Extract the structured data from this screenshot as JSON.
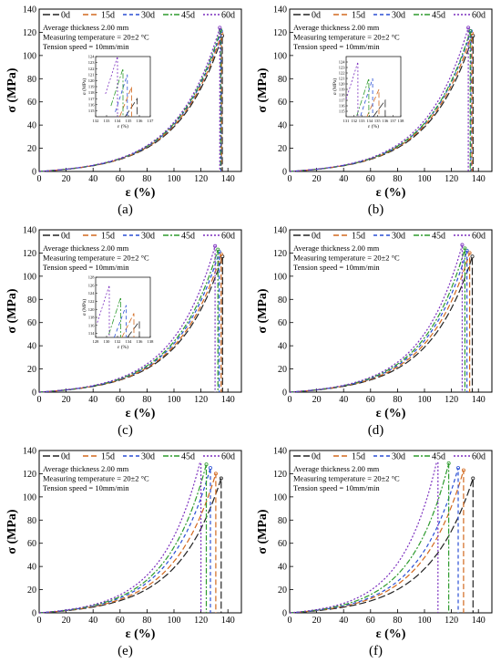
{
  "figure": {
    "panels": [
      {
        "label": "a",
        "caption": "(a)"
      },
      {
        "label": "b",
        "caption": "(b)"
      },
      {
        "label": "c",
        "caption": "(c)"
      },
      {
        "label": "d",
        "caption": "(d)"
      },
      {
        "label": "e",
        "caption": "(e)"
      },
      {
        "label": "f",
        "caption": "(f)"
      }
    ]
  },
  "chart_data": [
    {
      "panel": "a",
      "type": "line",
      "xlabel": "ε (%)",
      "ylabel": "σ (MPa)",
      "xlim": [
        0,
        150
      ],
      "ylim": [
        0,
        140
      ],
      "xticks": [
        0,
        20,
        40,
        60,
        80,
        100,
        120,
        140
      ],
      "yticks": [
        0,
        20,
        40,
        60,
        80,
        100,
        120,
        140
      ],
      "annotations": [
        "Average thickness 2.00 mm",
        "Measuring temperature = 20±2 °C",
        "Tension speed = 10mm/min"
      ],
      "series": [
        {
          "name": "0d",
          "color": "#222222",
          "dash": "8,3",
          "strain_at_break": 135.8,
          "stress_at_break": 117
        },
        {
          "name": "15d",
          "color": "#d2691e",
          "dash": "6,3",
          "strain_at_break": 135.3,
          "stress_at_break": 119
        },
        {
          "name": "30d",
          "color": "#2a4fd4",
          "dash": "4,3",
          "strain_at_break": 134.9,
          "stress_at_break": 121
        },
        {
          "name": "45d",
          "color": "#2e9b2e",
          "dash": "6,2,2,2",
          "strain_at_break": 134.5,
          "stress_at_break": 122
        },
        {
          "name": "60d",
          "color": "#7b2fbe",
          "dash": "2,2",
          "strain_at_break": 134.0,
          "stress_at_break": 124
        }
      ],
      "inset": {
        "xlabel": "ε (%)",
        "ylabel": "σ (MPa)",
        "xlim": [
          132,
          137
        ],
        "ylim": [
          114,
          124
        ],
        "xticks": [
          132,
          133,
          134,
          135,
          136,
          137
        ],
        "yticks": [
          115,
          116,
          117,
          118,
          119,
          120,
          121,
          122,
          123,
          124
        ]
      }
    },
    {
      "panel": "b",
      "type": "line",
      "xlabel": "ε (%)",
      "ylabel": "σ (MPa)",
      "xlim": [
        0,
        150
      ],
      "ylim": [
        0,
        140
      ],
      "xticks": [
        0,
        20,
        40,
        60,
        80,
        100,
        120,
        140
      ],
      "yticks": [
        0,
        20,
        40,
        60,
        80,
        100,
        120,
        140
      ],
      "annotations": [
        "Average thickness 2.00 mm",
        "Measuring temperature = 20±2 °C",
        "Tension speed = 10mm/min"
      ],
      "series": [
        {
          "name": "0d",
          "color": "#222222",
          "dash": "8,3",
          "strain_at_break": 136.0,
          "stress_at_break": 117
        },
        {
          "name": "15d",
          "color": "#d2691e",
          "dash": "6,3",
          "strain_at_break": 135.2,
          "stress_at_break": 119
        },
        {
          "name": "30d",
          "color": "#2a4fd4",
          "dash": "4,3",
          "strain_at_break": 134.4,
          "stress_at_break": 121
        },
        {
          "name": "45d",
          "color": "#2e9b2e",
          "dash": "6,2,2,2",
          "strain_at_break": 133.9,
          "stress_at_break": 121
        },
        {
          "name": "60d",
          "color": "#7b2fbe",
          "dash": "2,2",
          "strain_at_break": 132.5,
          "stress_at_break": 124
        }
      ],
      "inset": {
        "xlabel": "ε (%)",
        "ylabel": "σ (MPa)",
        "xlim": [
          131,
          138
        ],
        "ylim": [
          114,
          125
        ],
        "xticks": [
          131,
          132,
          133,
          134,
          135,
          136,
          137,
          138
        ],
        "yticks": [
          115,
          116,
          117,
          118,
          119,
          120,
          121,
          122,
          123,
          124
        ]
      }
    },
    {
      "panel": "c",
      "type": "line",
      "xlabel": "ε (%)",
      "ylabel": "σ (MPa)",
      "xlim": [
        0,
        150
      ],
      "ylim": [
        0,
        140
      ],
      "xticks": [
        0,
        20,
        40,
        60,
        80,
        100,
        120,
        140
      ],
      "yticks": [
        0,
        20,
        40,
        60,
        80,
        100,
        120,
        140
      ],
      "annotations": [
        "Average thickness 2.00 mm",
        "Measuring temperature = 20±2 °C",
        "Tension speed = 10mm/min"
      ],
      "series": [
        {
          "name": "0d",
          "color": "#222222",
          "dash": "8,3",
          "strain_at_break": 136.0,
          "stress_at_break": 117
        },
        {
          "name": "15d",
          "color": "#d2691e",
          "dash": "6,3",
          "strain_at_break": 135.0,
          "stress_at_break": 119
        },
        {
          "name": "30d",
          "color": "#2a4fd4",
          "dash": "4,3",
          "strain_at_break": 133.6,
          "stress_at_break": 121
        },
        {
          "name": "45d",
          "color": "#2e9b2e",
          "dash": "6,2,2,2",
          "strain_at_break": 132.6,
          "stress_at_break": 123
        },
        {
          "name": "60d",
          "color": "#7b2fbe",
          "dash": "2,2",
          "strain_at_break": 130.5,
          "stress_at_break": 126
        }
      ],
      "inset": {
        "xlabel": "ε (%)",
        "ylabel": "σ (MPa)",
        "xlim": [
          128,
          138
        ],
        "ylim": [
          113,
          128
        ],
        "xticks": [
          128,
          130,
          132,
          134,
          136,
          138
        ],
        "yticks": [
          114,
          116,
          118,
          120,
          122,
          124,
          126,
          128
        ]
      }
    },
    {
      "panel": "d",
      "type": "line",
      "xlabel": "ε (%)",
      "ylabel": "σ (MPa)",
      "xlim": [
        0,
        150
      ],
      "ylim": [
        0,
        140
      ],
      "xticks": [
        0,
        20,
        40,
        60,
        80,
        100,
        120,
        140
      ],
      "yticks": [
        0,
        20,
        40,
        60,
        80,
        100,
        120,
        140
      ],
      "annotations": [
        "Average thickness 2.00 mm",
        "Measuring temperature = 20±2 °C",
        "Tension speed = 10mm/min"
      ],
      "series": [
        {
          "name": "0d",
          "color": "#222222",
          "dash": "8,3",
          "strain_at_break": 135.5,
          "stress_at_break": 117
        },
        {
          "name": "15d",
          "color": "#d2691e",
          "dash": "6,3",
          "strain_at_break": 133.5,
          "stress_at_break": 120
        },
        {
          "name": "30d",
          "color": "#2a4fd4",
          "dash": "4,3",
          "strain_at_break": 131.5,
          "stress_at_break": 122
        },
        {
          "name": "45d",
          "color": "#2e9b2e",
          "dash": "6,2,2,2",
          "strain_at_break": 130.0,
          "stress_at_break": 124
        },
        {
          "name": "60d",
          "color": "#7b2fbe",
          "dash": "2,2",
          "strain_at_break": 128.0,
          "stress_at_break": 127
        }
      ]
    },
    {
      "panel": "e",
      "type": "line",
      "xlabel": "ε (%)",
      "ylabel": "σ (MPa)",
      "xlim": [
        0,
        150
      ],
      "ylim": [
        0,
        140
      ],
      "xticks": [
        0,
        20,
        40,
        60,
        80,
        100,
        120,
        140
      ],
      "yticks": [
        0,
        20,
        40,
        60,
        80,
        100,
        120,
        140
      ],
      "annotations": [
        "Average thickness 2.00 mm",
        "Measuring temperature = 20±2 °C",
        "Tension speed = 10mm/min"
      ],
      "series": [
        {
          "name": "0d",
          "color": "#222222",
          "dash": "8,3",
          "strain_at_break": 135.0,
          "stress_at_break": 116
        },
        {
          "name": "15d",
          "color": "#d2691e",
          "dash": "6,3",
          "strain_at_break": 131.0,
          "stress_at_break": 120
        },
        {
          "name": "30d",
          "color": "#2a4fd4",
          "dash": "4,3",
          "strain_at_break": 127.0,
          "stress_at_break": 125
        },
        {
          "name": "45d",
          "color": "#2e9b2e",
          "dash": "6,2,2,2",
          "strain_at_break": 124.0,
          "stress_at_break": 128
        },
        {
          "name": "60d",
          "color": "#7b2fbe",
          "dash": "2,2",
          "strain_at_break": 120.0,
          "stress_at_break": 133
        }
      ]
    },
    {
      "panel": "f",
      "type": "line",
      "xlabel": "ε (%)",
      "ylabel": "σ (MPa)",
      "xlim": [
        0,
        150
      ],
      "ylim": [
        0,
        140
      ],
      "xticks": [
        0,
        20,
        40,
        60,
        80,
        100,
        120,
        140
      ],
      "yticks": [
        0,
        20,
        40,
        60,
        80,
        100,
        120,
        140
      ],
      "annotations": [
        "Average thickness 2.00 mm",
        "Measuring temperature = 20±2 °C",
        "Tension speed = 10mm/min"
      ],
      "series": [
        {
          "name": "0d",
          "color": "#222222",
          "dash": "8,3",
          "strain_at_break": 136.0,
          "stress_at_break": 116
        },
        {
          "name": "15d",
          "color": "#d2691e",
          "dash": "6,3",
          "strain_at_break": 129.0,
          "stress_at_break": 123
        },
        {
          "name": "30d",
          "color": "#2a4fd4",
          "dash": "4,3",
          "strain_at_break": 125.0,
          "stress_at_break": 125
        },
        {
          "name": "45d",
          "color": "#2e9b2e",
          "dash": "6,2,2,2",
          "strain_at_break": 118.0,
          "stress_at_break": 129
        },
        {
          "name": "60d",
          "color": "#7b2fbe",
          "dash": "2,2",
          "strain_at_break": 110.0,
          "stress_at_break": 135
        }
      ]
    }
  ]
}
